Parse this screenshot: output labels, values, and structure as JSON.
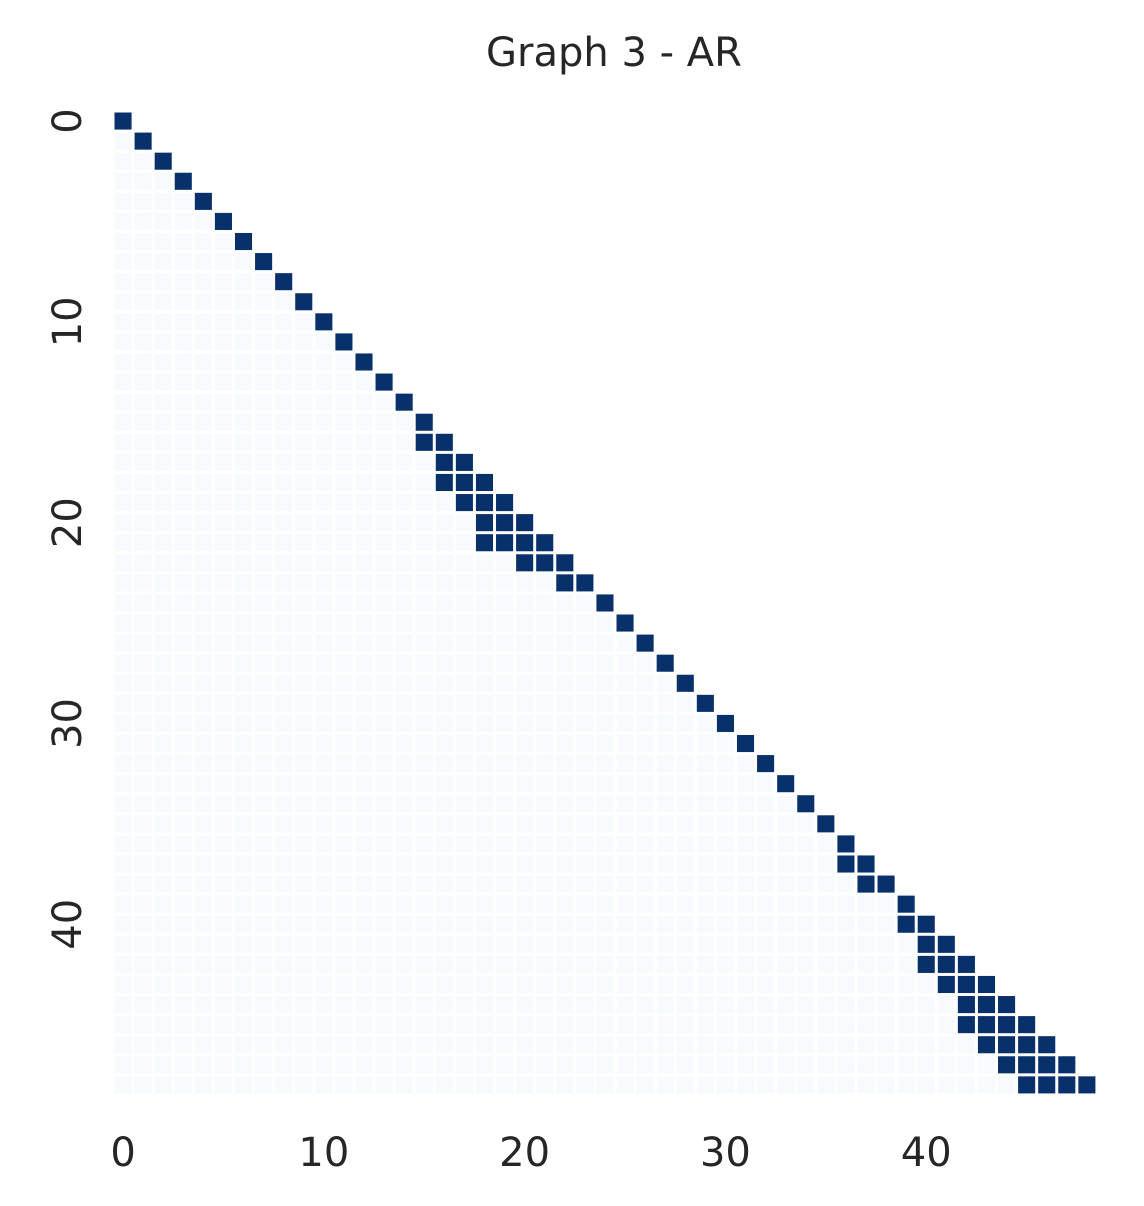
{
  "chart_data": {
    "type": "heatmap",
    "title": "Graph 3 - AR",
    "xlabel": "",
    "ylabel": "",
    "n": 49,
    "mask": "lower-triangle",
    "grid": false,
    "x_ticks": [
      0,
      10,
      20,
      30,
      40
    ],
    "y_ticks": [
      0,
      10,
      20,
      30,
      40
    ],
    "x_tick_labels": [
      "0",
      "10",
      "20",
      "30",
      "40"
    ],
    "y_tick_labels": [
      "0",
      "10",
      "20",
      "30",
      "40"
    ],
    "colormap": "Blues",
    "colors": {
      "active": "#08306b",
      "inactive": "#f7fbff"
    },
    "active_cells": [
      [
        0,
        0
      ],
      [
        1,
        1
      ],
      [
        2,
        2
      ],
      [
        3,
        3
      ],
      [
        4,
        4
      ],
      [
        5,
        5
      ],
      [
        6,
        6
      ],
      [
        7,
        7
      ],
      [
        8,
        8
      ],
      [
        9,
        9
      ],
      [
        10,
        10
      ],
      [
        11,
        11
      ],
      [
        12,
        12
      ],
      [
        13,
        13
      ],
      [
        14,
        14
      ],
      [
        15,
        15
      ],
      [
        16,
        15
      ],
      [
        16,
        16
      ],
      [
        17,
        16
      ],
      [
        17,
        17
      ],
      [
        18,
        16
      ],
      [
        18,
        17
      ],
      [
        18,
        18
      ],
      [
        19,
        17
      ],
      [
        19,
        18
      ],
      [
        19,
        19
      ],
      [
        20,
        18
      ],
      [
        20,
        19
      ],
      [
        20,
        20
      ],
      [
        21,
        18
      ],
      [
        21,
        19
      ],
      [
        21,
        20
      ],
      [
        21,
        21
      ],
      [
        22,
        20
      ],
      [
        22,
        21
      ],
      [
        22,
        22
      ],
      [
        23,
        22
      ],
      [
        23,
        23
      ],
      [
        24,
        24
      ],
      [
        25,
        25
      ],
      [
        26,
        26
      ],
      [
        27,
        27
      ],
      [
        28,
        28
      ],
      [
        29,
        29
      ],
      [
        30,
        30
      ],
      [
        31,
        31
      ],
      [
        32,
        32
      ],
      [
        33,
        33
      ],
      [
        34,
        34
      ],
      [
        35,
        35
      ],
      [
        36,
        36
      ],
      [
        37,
        36
      ],
      [
        37,
        37
      ],
      [
        38,
        37
      ],
      [
        38,
        38
      ],
      [
        39,
        39
      ],
      [
        40,
        39
      ],
      [
        40,
        40
      ],
      [
        41,
        40
      ],
      [
        41,
        41
      ],
      [
        42,
        40
      ],
      [
        42,
        41
      ],
      [
        42,
        42
      ],
      [
        43,
        41
      ],
      [
        43,
        42
      ],
      [
        43,
        43
      ],
      [
        44,
        42
      ],
      [
        44,
        43
      ],
      [
        44,
        44
      ],
      [
        45,
        42
      ],
      [
        45,
        43
      ],
      [
        45,
        44
      ],
      [
        45,
        45
      ],
      [
        46,
        43
      ],
      [
        46,
        44
      ],
      [
        46,
        45
      ],
      [
        46,
        46
      ],
      [
        47,
        44
      ],
      [
        47,
        45
      ],
      [
        47,
        46
      ],
      [
        47,
        47
      ],
      [
        48,
        45
      ],
      [
        48,
        46
      ],
      [
        48,
        47
      ],
      [
        48,
        48
      ]
    ]
  }
}
